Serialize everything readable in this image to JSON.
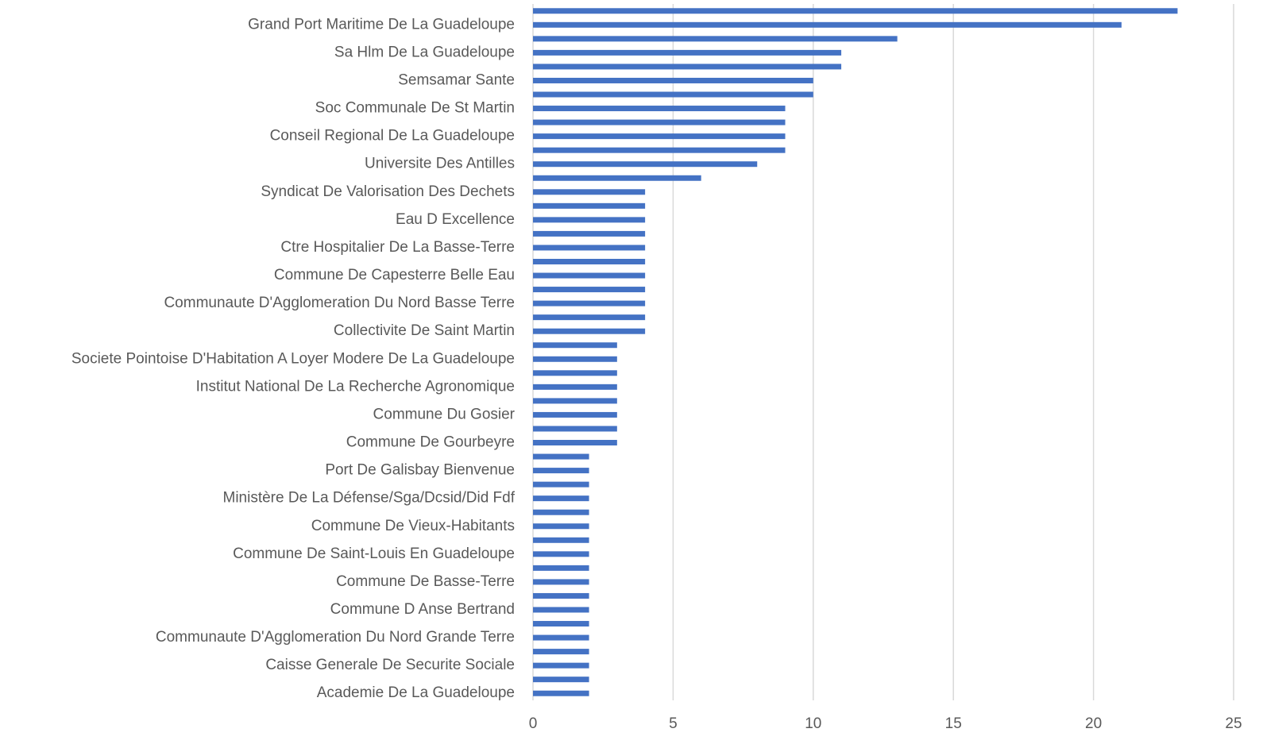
{
  "chart_data": {
    "type": "bar",
    "orientation": "horizontal",
    "categories": [
      null,
      "Grand Port Maritime De La Guadeloupe",
      null,
      "Sa Hlm De La Guadeloupe",
      null,
      "Semsamar Sante",
      null,
      "Soc Communale De St Martin",
      null,
      "Conseil Regional De La Guadeloupe",
      null,
      "Universite Des Antilles",
      null,
      "Syndicat De Valorisation Des Dechets",
      null,
      "Eau D Excellence",
      null,
      "Ctre Hospitalier De La Basse-Terre",
      null,
      "Commune De Capesterre Belle Eau",
      null,
      "Communaute D'Agglomeration Du Nord Basse Terre",
      null,
      "Collectivite De Saint Martin",
      null,
      "Societe Pointoise D'Habitation A Loyer Modere De La Guadeloupe",
      null,
      "Institut National De La Recherche Agronomique",
      null,
      "Commune Du Gosier",
      null,
      "Commune De Gourbeyre",
      null,
      "Port De Galisbay Bienvenue",
      null,
      "Ministère De La Défense/Sga/Dcsid/Did Fdf",
      null,
      "Commune De Vieux-Habitants",
      null,
      "Commune De Saint-Louis En Guadeloupe",
      null,
      "Commune De Basse-Terre",
      null,
      "Commune D Anse Bertrand",
      null,
      "Communaute D'Agglomeration  Du Nord Grande Terre",
      null,
      "Caisse Generale De Securite Sociale",
      null,
      "Academie De La Guadeloupe"
    ],
    "values": [
      23,
      21,
      13,
      11,
      11,
      10,
      10,
      9,
      9,
      9,
      9,
      8,
      6,
      4,
      4,
      4,
      4,
      4,
      4,
      4,
      4,
      4,
      4,
      4,
      3,
      3,
      3,
      3,
      3,
      3,
      3,
      3,
      2,
      2,
      2,
      2,
      2,
      2,
      2,
      2,
      2,
      2,
      2,
      2,
      2,
      2,
      2,
      2,
      2,
      2
    ],
    "color": "#4472c4",
    "xlim": [
      0,
      25
    ],
    "xticks": [
      0,
      5,
      10,
      15,
      20,
      25
    ],
    "grid": true
  }
}
